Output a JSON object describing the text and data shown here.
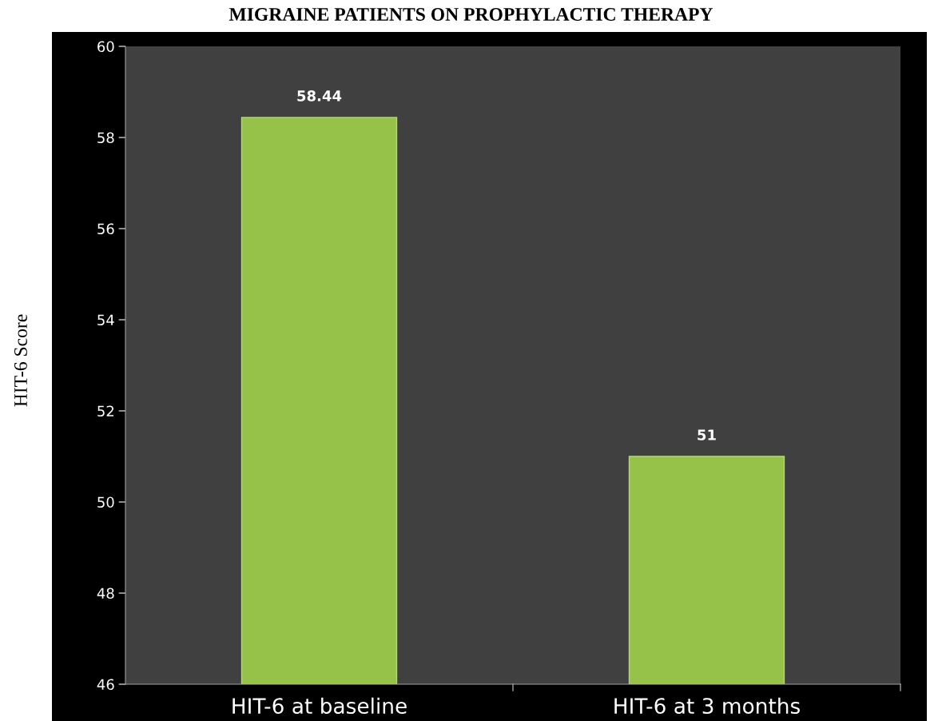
{
  "chart_data": {
    "type": "bar",
    "title": "MIGRAINE PATIENTS ON PROPHYLACTIC THERAPY",
    "ylabel": "HIT-6 Score",
    "categories": [
      "HIT-6 at baseline",
      "HIT-6 at 3 months"
    ],
    "values": [
      58.44,
      51
    ],
    "color": "#97c24a",
    "ylim": [
      46,
      60
    ],
    "yticks": [
      46,
      48,
      50,
      52,
      54,
      56,
      58,
      60
    ],
    "grid": false,
    "data_labels": true
  }
}
